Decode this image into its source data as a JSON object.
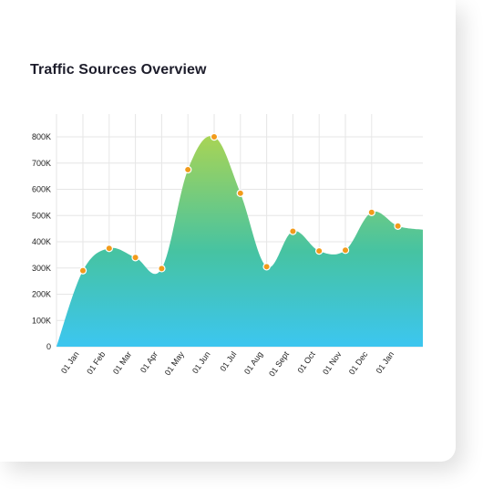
{
  "card": {
    "title": "Traffic Sources Overview"
  },
  "chart_data": {
    "type": "area",
    "title": "Traffic Sources Overview",
    "xlabel": "",
    "ylabel": "",
    "x": [
      "01 Jan",
      "01 Feb",
      "01 Mar",
      "01 Apr",
      "01 May",
      "01 Jun",
      "01 Jul",
      "01 Aug",
      "01 Sept",
      "01 Oct",
      "01 Nov",
      "01 Dec",
      "01 Jan"
    ],
    "values": [
      290000,
      375000,
      340000,
      298000,
      675000,
      800000,
      585000,
      305000,
      440000,
      365000,
      368000,
      512000,
      460000
    ],
    "ylim": [
      0,
      800000
    ],
    "yticks": [
      "0",
      "100K",
      "200K",
      "300K",
      "400K",
      "500K",
      "600K",
      "700K",
      "800K"
    ],
    "grid": true,
    "colors": {
      "gradient_top": "#a8d455",
      "gradient_mid": "#46c3a2",
      "gradient_bottom": "#3cc6f0",
      "marker_fill": "#f29b1b",
      "marker_stroke": "#ffffff",
      "grid": "#e6e6e6"
    }
  }
}
